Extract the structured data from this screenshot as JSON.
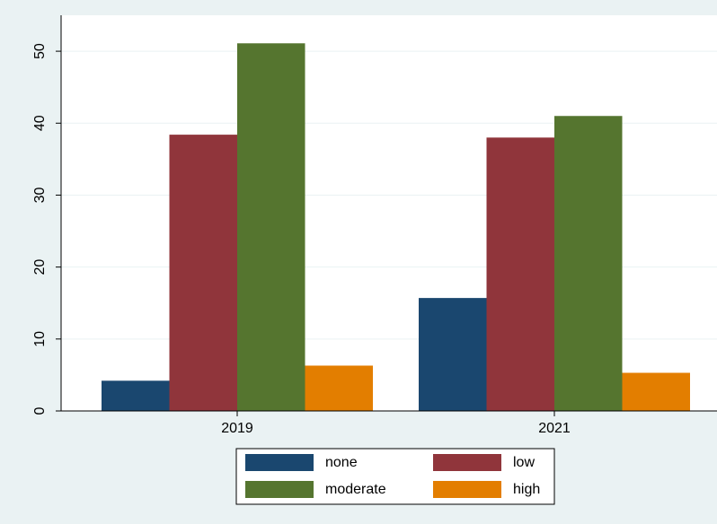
{
  "chart_data": {
    "type": "bar",
    "categories": [
      "2019",
      "2021"
    ],
    "series": [
      {
        "name": "none",
        "color": "#1a476f",
        "values": [
          4.2,
          15.7
        ]
      },
      {
        "name": "low",
        "color": "#90353b",
        "values": [
          38.4,
          38.0
        ]
      },
      {
        "name": "moderate",
        "color": "#55752f",
        "values": [
          51.1,
          41.0
        ]
      },
      {
        "name": "high",
        "color": "#e37e00",
        "values": [
          6.3,
          5.3
        ]
      }
    ],
    "ylim": [
      0,
      55
    ],
    "yticks": [
      0,
      10,
      20,
      30,
      40,
      50
    ],
    "grid": true
  }
}
